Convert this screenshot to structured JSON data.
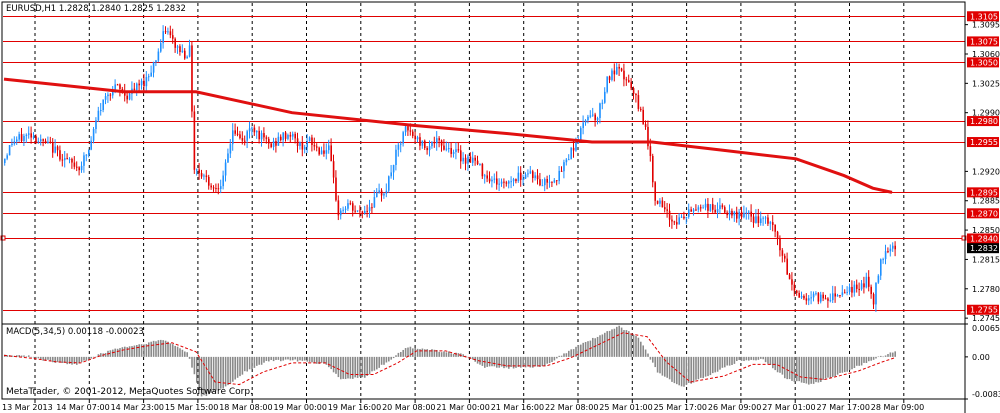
{
  "main": {
    "header": "EURUSD,H1  1.2828 1.2840 1.2825 1.2832",
    "price_labels": [
      "1.3095",
      "1.3060",
      "1.3025",
      "1.2990",
      "1.2920",
      "1.2885",
      "1.2850",
      "1.2815",
      "1.2780",
      "1.2745"
    ],
    "levels": [
      {
        "price": 1.3105,
        "label": "1.3105"
      },
      {
        "price": 1.3075,
        "label": "1.3075"
      },
      {
        "price": 1.305,
        "label": "1.3050"
      },
      {
        "price": 1.298,
        "label": "1.2980"
      },
      {
        "price": 1.2955,
        "label": "1.2955"
      },
      {
        "price": 1.2895,
        "label": "1.2895"
      },
      {
        "price": 1.287,
        "label": "1.2870"
      },
      {
        "price": 1.284,
        "label": "1.2840"
      },
      {
        "price": 1.2755,
        "label": "1.2755"
      }
    ],
    "current_price": {
      "price": 1.2832,
      "label": "1.2832"
    },
    "level_color": "#e00000",
    "bull_color": "#1e90ff",
    "bear_color": "#e00000",
    "ma_color": "#e01010"
  },
  "macd": {
    "header": "MACD(5,34,5) 0.00118 -0.00023",
    "labels": [
      "0.00653",
      "0.00",
      "-0.00837"
    ]
  },
  "time_axis": [
    "13 Mar 2013",
    "14 Mar 07:00",
    "14 Mar 23:00",
    "15 Mar 15:00",
    "18 Mar 08:00",
    "19 Mar 00:00",
    "19 Mar 16:00",
    "20 Mar 08:00",
    "21 Mar 00:00",
    "21 Mar 16:00",
    "22 Mar 08:00",
    "25 Mar 01:00",
    "25 Mar 17:00",
    "26 Mar 09:00",
    "27 Mar 01:00",
    "27 Mar 17:00",
    "28 Mar 09:00"
  ],
  "copyright": "MetaTrader, © 2001-2012, MetaQuotes Software Corp.",
  "chart_data": {
    "type": "candlestick",
    "symbol": "EURUSD",
    "timeframe": "H1",
    "ylim": [
      1.2738,
      1.3122
    ],
    "price_key_points": [
      [
        0,
        1.293
      ],
      [
        4,
        1.2955
      ],
      [
        8,
        1.296
      ],
      [
        12,
        1.2965
      ],
      [
        16,
        1.2955
      ],
      [
        20,
        1.295
      ],
      [
        24,
        1.294
      ],
      [
        28,
        1.293
      ],
      [
        32,
        1.2925
      ],
      [
        36,
        1.2945
      ],
      [
        40,
        1.299
      ],
      [
        44,
        1.3015
      ],
      [
        48,
        1.302
      ],
      [
        52,
        1.301
      ],
      [
        56,
        1.302
      ],
      [
        60,
        1.303
      ],
      [
        64,
        1.3055
      ],
      [
        68,
        1.309
      ],
      [
        72,
        1.307
      ],
      [
        76,
        1.306
      ],
      [
        78,
        1.3065
      ],
      [
        80,
        1.2925
      ],
      [
        84,
        1.2915
      ],
      [
        88,
        1.29
      ],
      [
        92,
        1.291
      ],
      [
        96,
        1.297
      ],
      [
        100,
        1.2955
      ],
      [
        104,
        1.2975
      ],
      [
        108,
        1.296
      ],
      [
        112,
        1.295
      ],
      [
        116,
        1.296
      ],
      [
        120,
        1.2965
      ],
      [
        124,
        1.295
      ],
      [
        128,
        1.2955
      ],
      [
        132,
        1.2945
      ],
      [
        136,
        1.2945
      ],
      [
        140,
        1.287
      ],
      [
        144,
        1.288
      ],
      [
        148,
        1.287
      ],
      [
        152,
        1.2875
      ],
      [
        156,
        1.289
      ],
      [
        160,
        1.29
      ],
      [
        164,
        1.294
      ],
      [
        168,
        1.297
      ],
      [
        172,
        1.296
      ],
      [
        176,
        1.295
      ],
      [
        180,
        1.2955
      ],
      [
        184,
        1.295
      ],
      [
        188,
        1.2945
      ],
      [
        192,
        1.2935
      ],
      [
        196,
        1.2935
      ],
      [
        200,
        1.292
      ],
      [
        204,
        1.291
      ],
      [
        208,
        1.2905
      ],
      [
        212,
        1.291
      ],
      [
        216,
        1.2915
      ],
      [
        220,
        1.292
      ],
      [
        224,
        1.2905
      ],
      [
        228,
        1.291
      ],
      [
        232,
        1.2915
      ],
      [
        236,
        1.294
      ],
      [
        240,
        1.296
      ],
      [
        244,
        1.299
      ],
      [
        248,
        1.2985
      ],
      [
        252,
        1.303
      ],
      [
        256,
        1.304
      ],
      [
        260,
        1.303
      ],
      [
        264,
        1.3005
      ],
      [
        268,
        1.2975
      ],
      [
        272,
        1.289
      ],
      [
        276,
        1.287
      ],
      [
        280,
        1.286
      ],
      [
        284,
        1.2865
      ],
      [
        288,
        1.2875
      ],
      [
        292,
        1.288
      ],
      [
        296,
        1.2875
      ],
      [
        300,
        1.2875
      ],
      [
        304,
        1.2865
      ],
      [
        308,
        1.287
      ],
      [
        312,
        1.2865
      ],
      [
        316,
        1.286
      ],
      [
        320,
        1.286
      ],
      [
        324,
        1.283
      ],
      [
        328,
        1.279
      ],
      [
        332,
        1.277
      ],
      [
        336,
        1.277
      ],
      [
        340,
        1.277
      ],
      [
        344,
        1.277
      ],
      [
        348,
        1.2775
      ],
      [
        352,
        1.278
      ],
      [
        356,
        1.278
      ],
      [
        360,
        1.279
      ],
      [
        363,
        1.2765
      ],
      [
        366,
        1.2815
      ],
      [
        369,
        1.283
      ],
      [
        371,
        1.2832
      ]
    ],
    "moving_average": [
      [
        0,
        1.303
      ],
      [
        50,
        1.3015
      ],
      [
        80,
        1.3015
      ],
      [
        120,
        1.299
      ],
      [
        170,
        1.2975
      ],
      [
        210,
        1.2965
      ],
      [
        245,
        1.2955
      ],
      [
        270,
        1.2955
      ],
      [
        300,
        1.2945
      ],
      [
        330,
        1.2935
      ],
      [
        350,
        1.2915
      ],
      [
        362,
        1.29
      ],
      [
        370,
        1.2895
      ]
    ],
    "macd_range": [
      -0.00837,
      0.00653
    ],
    "macd_key_points": [
      [
        0,
        0.0004
      ],
      [
        10,
        0.0001
      ],
      [
        20,
        -0.001
      ],
      [
        30,
        -0.0016
      ],
      [
        38,
        0.0002
      ],
      [
        46,
        0.0016
      ],
      [
        56,
        0.0024
      ],
      [
        66,
        0.0034
      ],
      [
        76,
        0.001
      ],
      [
        82,
        -0.008
      ],
      [
        92,
        -0.006
      ],
      [
        100,
        -0.003
      ],
      [
        110,
        -0.0008
      ],
      [
        120,
        -0.0006
      ],
      [
        134,
        -0.0015
      ],
      [
        140,
        -0.0045
      ],
      [
        150,
        -0.004
      ],
      [
        160,
        -0.0008
      ],
      [
        168,
        0.002
      ],
      [
        176,
        0.0015
      ],
      [
        190,
        0.0006
      ],
      [
        200,
        -0.002
      ],
      [
        212,
        -0.0022
      ],
      [
        224,
        -0.002
      ],
      [
        232,
        0.0003
      ],
      [
        242,
        0.003
      ],
      [
        256,
        0.006
      ],
      [
        264,
        0.004
      ],
      [
        272,
        -0.003
      ],
      [
        282,
        -0.006
      ],
      [
        296,
        -0.003
      ],
      [
        306,
        -0.0008
      ],
      [
        316,
        -0.0005
      ],
      [
        326,
        -0.0045
      ],
      [
        336,
        -0.0055
      ],
      [
        350,
        -0.003
      ],
      [
        362,
        -0.0005
      ],
      [
        371,
        0.0012
      ]
    ],
    "macd_signal_points": [
      [
        0,
        0.0003
      ],
      [
        12,
        -0.0003
      ],
      [
        22,
        -0.001
      ],
      [
        32,
        -0.0012
      ],
      [
        40,
        0.0002
      ],
      [
        50,
        0.0014
      ],
      [
        60,
        0.0022
      ],
      [
        70,
        0.0028
      ],
      [
        80,
        0.001
      ],
      [
        88,
        -0.005
      ],
      [
        98,
        -0.0055
      ],
      [
        108,
        -0.003
      ],
      [
        120,
        -0.0012
      ],
      [
        134,
        -0.0012
      ],
      [
        144,
        -0.0035
      ],
      [
        154,
        -0.0035
      ],
      [
        164,
        -0.0012
      ],
      [
        172,
        0.0012
      ],
      [
        184,
        0.0012
      ],
      [
        198,
        -0.0008
      ],
      [
        210,
        -0.0018
      ],
      [
        226,
        -0.0018
      ],
      [
        236,
        -0.0002
      ],
      [
        248,
        0.0025
      ],
      [
        258,
        0.0048
      ],
      [
        268,
        0.004
      ],
      [
        276,
        -0.001
      ],
      [
        286,
        -0.005
      ],
      [
        300,
        -0.0038
      ],
      [
        312,
        -0.0015
      ],
      [
        322,
        -0.0015
      ],
      [
        332,
        -0.004
      ],
      [
        342,
        -0.0045
      ],
      [
        356,
        -0.0028
      ],
      [
        366,
        -0.001
      ],
      [
        371,
        -0.0002
      ]
    ]
  }
}
